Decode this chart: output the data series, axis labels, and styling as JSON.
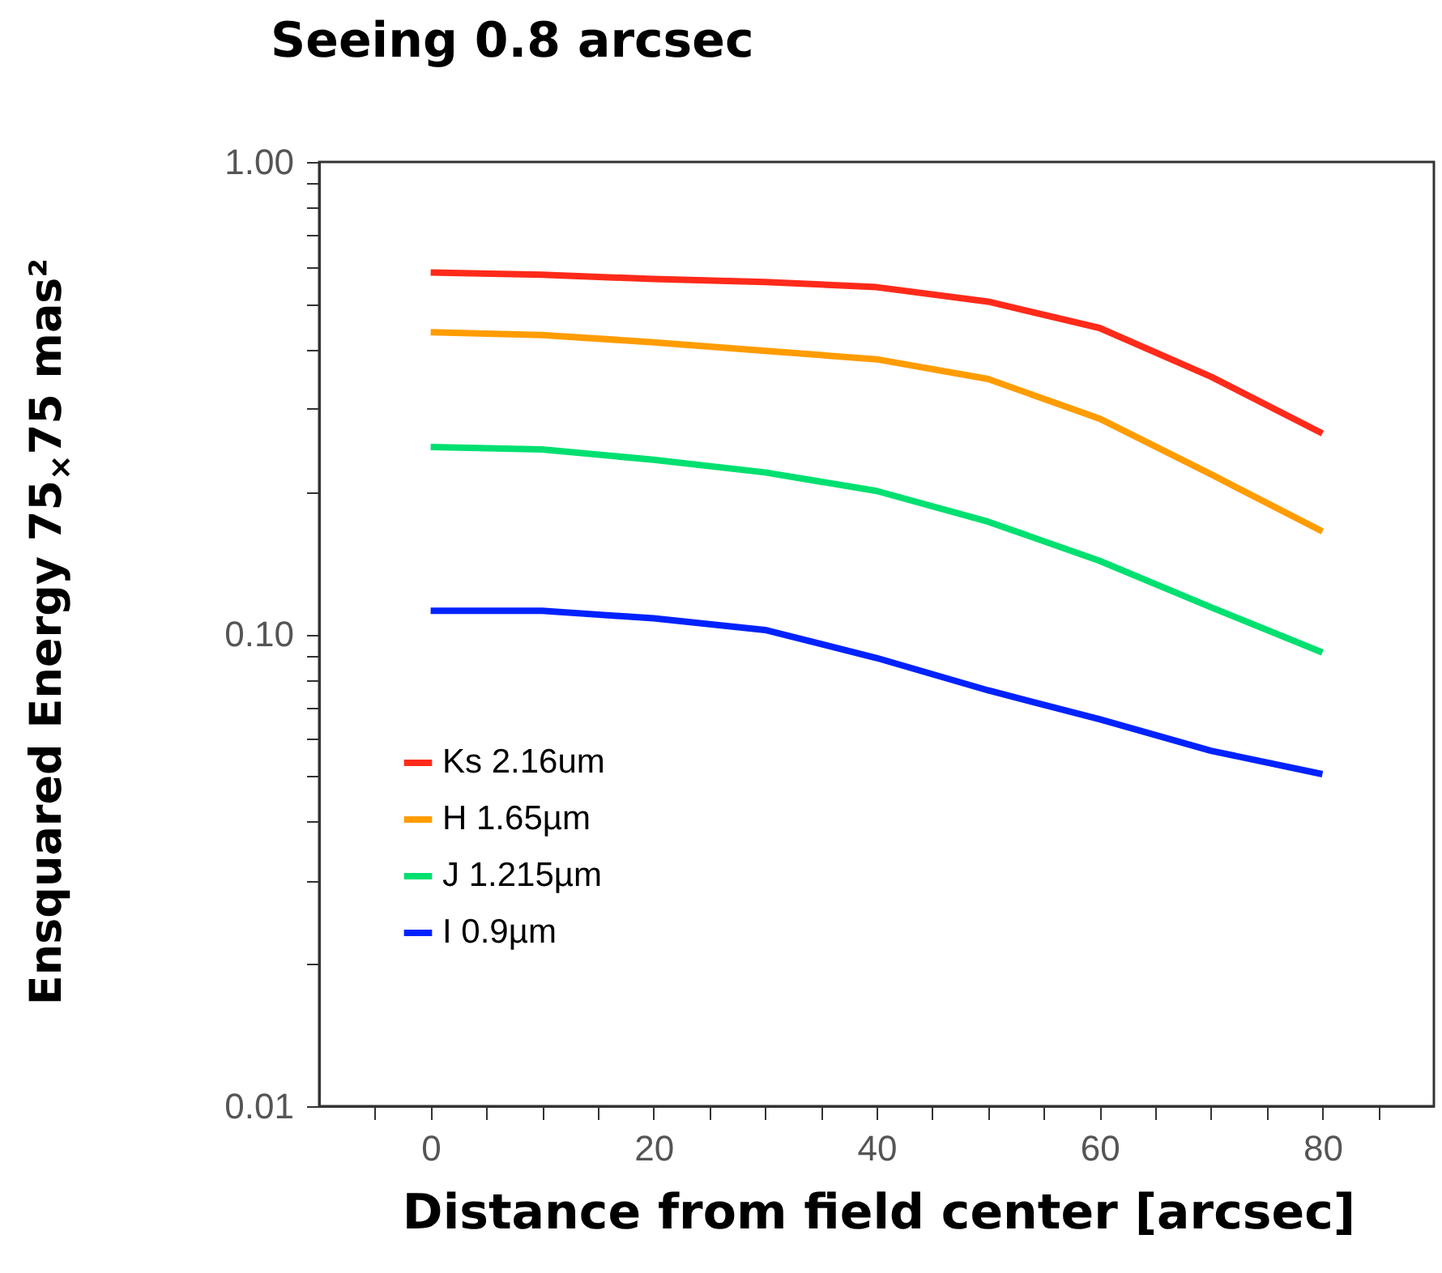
{
  "chart_data": {
    "type": "line",
    "title": "Seeing 0.8 arcsec",
    "xlabel": "Distance from field center [arcsec]",
    "ylabel": "Ensquared Energy 75$_{×}$75 mas²",
    "x": [
      0,
      10,
      20,
      30,
      40,
      50,
      60,
      70,
      80
    ],
    "series": [
      {
        "name": "Ks 2.16um",
        "color": "#ff2a1a",
        "values": [
          0.583,
          0.577,
          0.565,
          0.557,
          0.543,
          0.506,
          0.445,
          0.351,
          0.266
        ]
      },
      {
        "name": "H 1.65µm",
        "color": "#ff9c00",
        "values": [
          0.436,
          0.43,
          0.415,
          0.398,
          0.382,
          0.347,
          0.286,
          0.218,
          0.165
        ]
      },
      {
        "name": "J 1.215µm",
        "color": "#00e070",
        "values": [
          0.249,
          0.246,
          0.234,
          0.22,
          0.201,
          0.173,
          0.143,
          0.114,
          0.0914
        ]
      },
      {
        "name": "I 0.9µm",
        "color": "#0022ff",
        "values": [
          0.112,
          0.112,
          0.108,
          0.102,
          0.089,
          0.076,
          0.066,
          0.0566,
          0.0505
        ]
      }
    ],
    "xlim": [
      -10,
      90
    ],
    "xticks": [
      0,
      20,
      40,
      60,
      80,
      {
        "value": -5,
        "label": null
      },
      {
        "value": 5,
        "label": null
      },
      {
        "value": 10,
        "label": null
      },
      {
        "value": 15,
        "label": null
      },
      {
        "value": 25,
        "label": null
      },
      {
        "value": 30,
        "label": null
      },
      {
        "value": 35,
        "label": null
      },
      {
        "value": 45,
        "label": null
      },
      {
        "value": 50,
        "label": null
      },
      {
        "value": 55,
        "label": null
      },
      {
        "value": 65,
        "label": null
      },
      {
        "value": 70,
        "label": null
      },
      {
        "value": 75,
        "label": null
      },
      {
        "value": 85,
        "label": null
      }
    ],
    "ylim": [
      0.01,
      1
    ],
    "yticks": [
      {
        "value": 0.01,
        "label": "0.01"
      },
      {
        "value": 0.1,
        "label": "0.10"
      },
      {
        "value": 1,
        "label": "1.00"
      },
      {
        "value": 0.02,
        "label": null
      },
      {
        "value": 0.03,
        "label": null
      },
      {
        "value": 0.04,
        "label": null
      },
      {
        "value": 0.05,
        "label": null
      },
      {
        "value": 0.06,
        "label": null
      },
      {
        "value": 0.07,
        "label": null
      },
      {
        "value": 0.08,
        "label": null
      },
      {
        "value": 0.09,
        "label": null
      },
      {
        "value": 0.2,
        "label": null
      },
      {
        "value": 0.3,
        "label": null
      },
      {
        "value": 0.4,
        "label": null
      },
      {
        "value": 0.5,
        "label": null
      },
      {
        "value": 0.6,
        "label": null
      },
      {
        "value": 0.7,
        "label": null
      },
      {
        "value": 0.8,
        "label": null
      },
      {
        "value": 0.9,
        "label": null
      }
    ],
    "log": "y",
    "grid": false,
    "legend": "bottom left",
    "marker": "none",
    "line_style": "solid"
  }
}
